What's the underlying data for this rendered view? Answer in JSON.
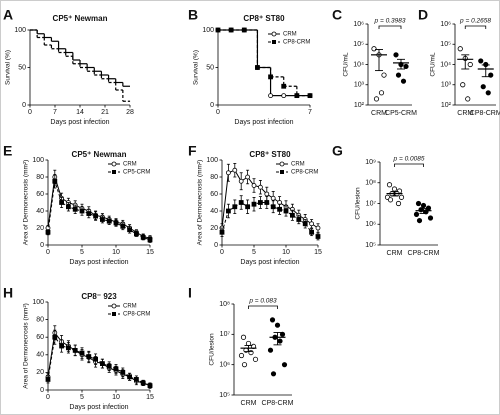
{
  "chart_data": [
    {
      "panel_label": "A",
      "type": "step",
      "title": "CP5⁺ Newman",
      "x_label": "Days post infection",
      "y_label": "Survival (%)",
      "xlim": [
        0,
        28
      ],
      "xticks": [
        0,
        7,
        14,
        21,
        28
      ],
      "ylim": [
        0,
        100
      ],
      "yticks": [
        0,
        50,
        100
      ],
      "series": [
        {
          "name": "CRM",
          "color": "#000000",
          "line_style": "solid",
          "x": [
            0,
            2,
            4,
            6,
            8,
            10,
            12,
            14,
            16,
            18,
            20,
            22,
            24,
            26,
            28
          ],
          "values": [
            100,
            95,
            90,
            85,
            75,
            70,
            60,
            55,
            50,
            45,
            40,
            35,
            30,
            25,
            25
          ]
        },
        {
          "name": "CP5-CRM",
          "color": "#000000",
          "line_style": "dashed",
          "x": [
            0,
            2,
            4,
            6,
            8,
            10,
            12,
            14,
            16,
            18,
            20,
            22,
            24,
            26,
            28
          ],
          "values": [
            100,
            90,
            80,
            75,
            70,
            65,
            55,
            50,
            45,
            40,
            35,
            30,
            20,
            5,
            5
          ]
        }
      ]
    },
    {
      "panel_label": "B",
      "type": "step",
      "title": "CP8⁺ ST80",
      "x_label": "Days post infection",
      "y_label": "Survival (%)",
      "xlim": [
        0,
        7
      ],
      "xticks": [
        0,
        7
      ],
      "ylim": [
        0,
        100
      ],
      "yticks": [
        0,
        50,
        100
      ],
      "legend": "upper right",
      "series": [
        {
          "name": "CRM",
          "color": "#000000",
          "line_style": "solid",
          "marker": "circle",
          "x": [
            0,
            1,
            2,
            3,
            4,
            5,
            6,
            7
          ],
          "values": [
            100,
            100,
            100,
            50,
            12.5,
            12.5,
            12.5,
            12.5
          ]
        },
        {
          "name": "CP8-CRM",
          "color": "#000000",
          "line_style": "dashed",
          "marker": "square",
          "x": [
            0,
            1,
            2,
            3,
            4,
            5,
            6,
            7
          ],
          "values": [
            100,
            100,
            100,
            50,
            37.5,
            25,
            12.5,
            12.5
          ]
        }
      ]
    },
    {
      "panel_label": "C",
      "type": "dot",
      "y_label": "CFU/mL",
      "log_scale": true,
      "annotation": "p = 0.3983",
      "ylim": [
        100,
        1000000
      ],
      "yticks": [
        {
          "value": 100,
          "label": "10²"
        },
        {
          "value": 1000,
          "label": "10³"
        },
        {
          "value": 10000,
          "label": "10⁴"
        },
        {
          "value": 100000,
          "label": "10⁵"
        },
        {
          "value": 1000000,
          "label": "10⁶"
        }
      ],
      "categories": [
        "CRM",
        "CP5-CRM"
      ],
      "point_colors": [
        "#ffffff",
        "#000000"
      ],
      "values": [
        [
          60000,
          30000,
          3000,
          200,
          400
        ],
        [
          30000,
          10000,
          8000,
          3000,
          1500
        ]
      ],
      "means": [
        30000,
        12000
      ],
      "errors": [
        25000,
        6000
      ]
    },
    {
      "panel_label": "D",
      "type": "dot",
      "y_label": "CFU/mL",
      "log_scale": true,
      "annotation": "p = 0.2658",
      "ylim": [
        100,
        1000000
      ],
      "yticks": [
        {
          "value": 100,
          "label": "10²"
        },
        {
          "value": 1000,
          "label": "10³"
        },
        {
          "value": 10000,
          "label": "10⁴"
        },
        {
          "value": 100000,
          "label": "10⁵"
        },
        {
          "value": 1000000,
          "label": "10⁶"
        }
      ],
      "categories": [
        "CRM",
        "CP8-CRM"
      ],
      "point_colors": [
        "#ffffff",
        "#000000"
      ],
      "values": [
        [
          60000,
          20000,
          10000,
          1000,
          200
        ],
        [
          15000,
          10000,
          3000,
          800,
          400
        ]
      ],
      "means": [
        18000,
        6000
      ],
      "errors": [
        12000,
        3500
      ]
    },
    {
      "panel_label": "E",
      "type": "line",
      "title": "CP5⁺ Newman",
      "x_label": "Days post infection",
      "y_label": "Area of Dermonecrosis (mm²)",
      "xlim": [
        0,
        15
      ],
      "xticks": [
        0,
        5,
        10,
        15
      ],
      "ylim": [
        0,
        100
      ],
      "yticks": [
        0,
        20,
        40,
        60,
        80,
        100
      ],
      "legend": "upper right",
      "x": [
        0,
        1,
        2,
        3,
        4,
        5,
        6,
        7,
        8,
        9,
        10,
        11,
        12,
        13,
        14,
        15
      ],
      "series": [
        {
          "name": "CRM",
          "color": "#000000",
          "line_style": "solid",
          "marker": "circle",
          "values": [
            20,
            80,
            55,
            50,
            47,
            43,
            40,
            35,
            33,
            30,
            27,
            25,
            20,
            15,
            10,
            8
          ],
          "errors": [
            3,
            8,
            6,
            5,
            5,
            5,
            5,
            5,
            4,
            4,
            4,
            4,
            4,
            3,
            3,
            3
          ]
        },
        {
          "name": "CP5-CRM",
          "color": "#000000",
          "line_style": "dashed",
          "marker": "square",
          "values": [
            15,
            75,
            50,
            45,
            42,
            40,
            37,
            34,
            30,
            28,
            26,
            22,
            18,
            13,
            9,
            6
          ],
          "errors": [
            3,
            8,
            6,
            5,
            5,
            5,
            5,
            5,
            4,
            4,
            4,
            4,
            4,
            3,
            3,
            3
          ]
        }
      ]
    },
    {
      "panel_label": "F",
      "type": "line",
      "title": "CP8⁺ ST80",
      "x_label": "Days post infection",
      "y_label": "Area of Dermonecrosis (mm²)",
      "xlim": [
        0,
        15
      ],
      "xticks": [
        0,
        5,
        10,
        15
      ],
      "ylim": [
        0,
        100
      ],
      "yticks": [
        0,
        20,
        40,
        60,
        80,
        100
      ],
      "legend": "upper right",
      "x": [
        0,
        1,
        2,
        3,
        4,
        5,
        6,
        7,
        8,
        9,
        10,
        11,
        12,
        13,
        14,
        15
      ],
      "series": [
        {
          "name": "CRM",
          "color": "#000000",
          "line_style": "solid",
          "marker": "circle",
          "values": [
            20,
            85,
            88,
            75,
            80,
            70,
            68,
            60,
            55,
            50,
            45,
            42,
            35,
            30,
            25,
            20
          ],
          "errors": [
            5,
            10,
            8,
            10,
            8,
            8,
            8,
            8,
            8,
            7,
            7,
            6,
            6,
            6,
            5,
            5
          ]
        },
        {
          "name": "CP8-CRM",
          "color": "#000000",
          "line_style": "dashed",
          "marker": "square",
          "values": [
            15,
            40,
            45,
            50,
            45,
            48,
            50,
            50,
            45,
            42,
            40,
            35,
            30,
            25,
            15,
            10
          ],
          "errors": [
            5,
            8,
            8,
            8,
            8,
            8,
            7,
            7,
            7,
            6,
            6,
            6,
            5,
            5,
            4,
            4
          ]
        }
      ]
    },
    {
      "panel_label": "G",
      "type": "dot",
      "y_label": "CFU/lesion",
      "log_scale": true,
      "annotation": "p = 0.0085",
      "ylim": [
        100000,
        1000000000
      ],
      "yticks": [
        {
          "value": 100000,
          "label": "10⁵"
        },
        {
          "value": 1000000,
          "label": "10⁶"
        },
        {
          "value": 10000000,
          "label": "10⁷"
        },
        {
          "value": 100000000,
          "label": "10⁸"
        },
        {
          "value": 1000000000,
          "label": "10⁹"
        }
      ],
      "categories": [
        "CRM",
        "CP8-CRM"
      ],
      "point_colors": [
        "#ffffff",
        "#000000"
      ],
      "values": [
        [
          80000000,
          50000000,
          40000000,
          30000000,
          30000000,
          20000000,
          20000000,
          15000000,
          10000000
        ],
        [
          10000000,
          8000000,
          6000000,
          5000000,
          4000000,
          3000000,
          2000000,
          1500000
        ]
      ],
      "means": [
        30000000,
        4500000
      ],
      "errors": [
        7000000,
        1200000
      ]
    },
    {
      "panel_label": "H",
      "type": "line",
      "title": "CP8⁻ 923",
      "x_label": "Days post infection",
      "y_label": "Area of Dermonecrosis (mm²)",
      "xlim": [
        0,
        15
      ],
      "xticks": [
        0,
        5,
        10,
        15
      ],
      "ylim": [
        0,
        100
      ],
      "yticks": [
        0,
        20,
        40,
        60,
        80,
        100
      ],
      "legend": "upper right",
      "x": [
        0,
        1,
        2,
        3,
        4,
        5,
        6,
        7,
        8,
        9,
        10,
        11,
        12,
        13,
        14,
        15
      ],
      "series": [
        {
          "name": "CRM",
          "color": "#000000",
          "line_style": "solid",
          "marker": "circle",
          "values": [
            15,
            65,
            55,
            50,
            45,
            40,
            37,
            32,
            30,
            25,
            22,
            18,
            15,
            10,
            8,
            5
          ],
          "errors": [
            4,
            8,
            7,
            6,
            6,
            6,
            6,
            6,
            5,
            5,
            5,
            5,
            4,
            4,
            3,
            3
          ]
        },
        {
          "name": "CP8-CRM",
          "color": "#000000",
          "line_style": "dashed",
          "marker": "square",
          "values": [
            12,
            60,
            50,
            48,
            45,
            42,
            38,
            35,
            30,
            27,
            24,
            20,
            15,
            12,
            8,
            5
          ],
          "errors": [
            4,
            8,
            7,
            6,
            6,
            6,
            6,
            6,
            5,
            5,
            5,
            5,
            4,
            4,
            3,
            3
          ]
        }
      ]
    },
    {
      "panel_label": "I",
      "type": "dot",
      "y_label": "CFU/lesion",
      "log_scale": true,
      "annotation": "p = 0.083",
      "ylim": [
        100000,
        100000000
      ],
      "yticks": [
        {
          "value": 100000,
          "label": "10⁵"
        },
        {
          "value": 1000000,
          "label": "10⁶"
        },
        {
          "value": 10000000,
          "label": "10⁷"
        },
        {
          "value": 100000000,
          "label": "10⁸"
        }
      ],
      "categories": [
        "CRM",
        "CP8-CRM"
      ],
      "point_colors": [
        "#ffffff",
        "#000000"
      ],
      "values": [
        [
          8000000,
          5000000,
          4000000,
          3000000,
          2500000,
          2000000,
          1500000,
          1000000
        ],
        [
          30000000,
          20000000,
          10000000,
          8000000,
          6000000,
          3000000,
          1000000,
          500000
        ]
      ],
      "means": [
        3500000,
        8000000
      ],
      "errors": [
        800000,
        3500000
      ]
    }
  ]
}
